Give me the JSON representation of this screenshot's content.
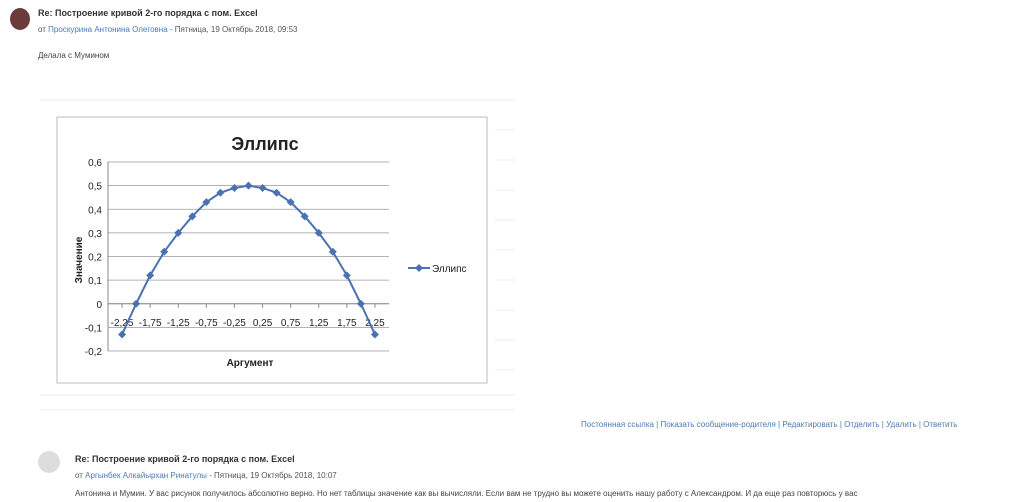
{
  "posts": [
    {
      "title": "Re: Построение кривой 2-го порядка с пом. Excel",
      "author_prefix": "от",
      "author": "Проскурина Антонина Олеговна",
      "meta": "- Пятница, 19 Октябрь 2018, 09:53",
      "body": "Делала с Мумином"
    },
    {
      "title": "Re: Построение кривой 2-го порядка с пом. Excel",
      "author_prefix": "от",
      "author": "Аргынбек Алкайырхан Ринатулы",
      "meta": "- Пятница, 19 Октябрь 2018, 10:07",
      "body": "Антонина и Мумин. У вас рисунок получилось абсолютно верно. Но нет таблицы значение как вы вычисляли. Если вам не трудно вы можете оценить нашу работу с Александром. И да еще раз повторюсь у вас"
    }
  ],
  "post_actions": "Постоянная ссылка | Показать сообщение-родителя | Редактировать | Отделить | Удалить | Ответить",
  "chart_data": {
    "type": "line",
    "title": "Эллипс",
    "x_label": "Аргумент",
    "y_label": "Значение",
    "x": [
      -2.25,
      -2,
      -1.75,
      -1.5,
      -1.25,
      -1,
      -0.75,
      -0.5,
      -0.25,
      0,
      0.25,
      0.5,
      0.75,
      1,
      1.25,
      1.5,
      1.75,
      2,
      2.25
    ],
    "series": [
      {
        "name": "Эллипс",
        "color": "#4a72b0",
        "values": [
          -0.13,
          0,
          0.12,
          0.22,
          0.3,
          0.37,
          0.43,
          0.47,
          0.49,
          0.5,
          0.49,
          0.47,
          0.43,
          0.37,
          0.3,
          0.22,
          0.12,
          0,
          -0.13
        ]
      }
    ],
    "xlim": [
      -2.5,
      2.5
    ],
    "xticks": [
      {
        "value": -2.25,
        "label": "-2,25"
      },
      {
        "value": -1.75,
        "label": "-1,75"
      },
      {
        "value": -1.25,
        "label": "-1,25"
      },
      {
        "value": -0.75,
        "label": "-0,75"
      },
      {
        "value": -0.25,
        "label": "-0,25"
      },
      {
        "value": 0.25,
        "label": "0,25"
      },
      {
        "value": 0.75,
        "label": "0,75"
      },
      {
        "value": 1.25,
        "label": "1,25"
      },
      {
        "value": 1.75,
        "label": "1,75"
      },
      {
        "value": 2.25,
        "label": "2,25"
      }
    ],
    "ylim": [
      -0.2,
      0.6
    ],
    "yticks": [
      {
        "value": 0.6,
        "label": "0,6"
      },
      {
        "value": 0.5,
        "label": "0,5"
      },
      {
        "value": 0.4,
        "label": "0,4"
      },
      {
        "value": 0.3,
        "label": "0,3"
      },
      {
        "value": 0.2,
        "label": "0,2"
      },
      {
        "value": 0.1,
        "label": "0,1"
      },
      0,
      {
        "value": -0.1,
        "label": "-0,1"
      },
      {
        "value": -0.2,
        "label": "-0,2"
      }
    ],
    "grid": true,
    "legend": "right"
  }
}
